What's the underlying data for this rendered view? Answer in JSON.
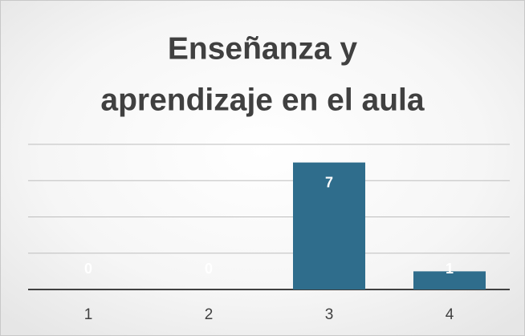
{
  "chart_data": {
    "type": "bar",
    "title": [
      "Enseñanza y",
      "aprendizaje en el aula"
    ],
    "categories": [
      "1",
      "2",
      "3",
      "4"
    ],
    "values": [
      0,
      0,
      7,
      1
    ],
    "color": "#2f6d8c",
    "ylim": [
      0,
      8
    ],
    "yticks": [
      0,
      2,
      4,
      6,
      8
    ],
    "grid": true
  }
}
